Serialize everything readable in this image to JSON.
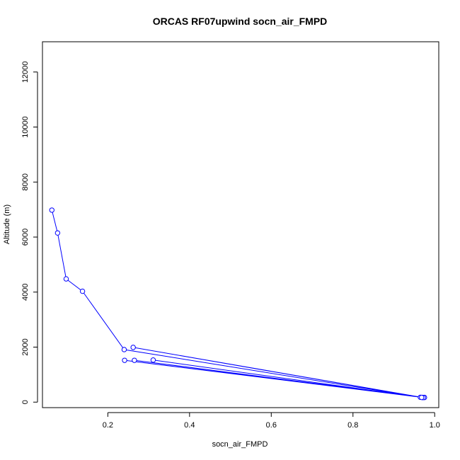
{
  "chart_data": {
    "type": "line",
    "title": "ORCAS RF07upwind socn_air_FMPD",
    "xlabel": "socn_air_FMPD",
    "ylabel": "Altitude (m)",
    "xlim": [
      0.04,
      1.01
    ],
    "ylim": [
      -200,
      13100
    ],
    "xticks": [
      0.2,
      0.4,
      0.6,
      0.8,
      1.0
    ],
    "xtick_labels": [
      "0.2",
      "0.4",
      "0.6",
      "0.8",
      "1.0"
    ],
    "yticks": [
      0,
      2000,
      4000,
      6000,
      8000,
      10000,
      12000
    ],
    "ytick_labels": [
      "0",
      "2000",
      "4000",
      "6000",
      "8000",
      "10000",
      "12000"
    ],
    "grid": false,
    "series": [
      {
        "color": "#0000ff",
        "marker": "open-circle",
        "points": [
          {
            "x": 0.063,
            "y": 6980
          },
          {
            "x": 0.077,
            "y": 6150
          },
          {
            "x": 0.098,
            "y": 4480
          },
          {
            "x": 0.138,
            "y": 4030
          },
          {
            "x": 0.24,
            "y": 1910
          },
          {
            "x": 0.965,
            "y": 175
          },
          {
            "x": 0.262,
            "y": 1990
          },
          {
            "x": 0.97,
            "y": 170
          },
          {
            "x": 0.241,
            "y": 1520
          },
          {
            "x": 0.975,
            "y": 170
          },
          {
            "x": 0.265,
            "y": 1520
          },
          {
            "x": 0.972,
            "y": 168
          },
          {
            "x": 0.311,
            "y": 1530
          },
          {
            "x": 0.968,
            "y": 172
          }
        ]
      }
    ]
  }
}
